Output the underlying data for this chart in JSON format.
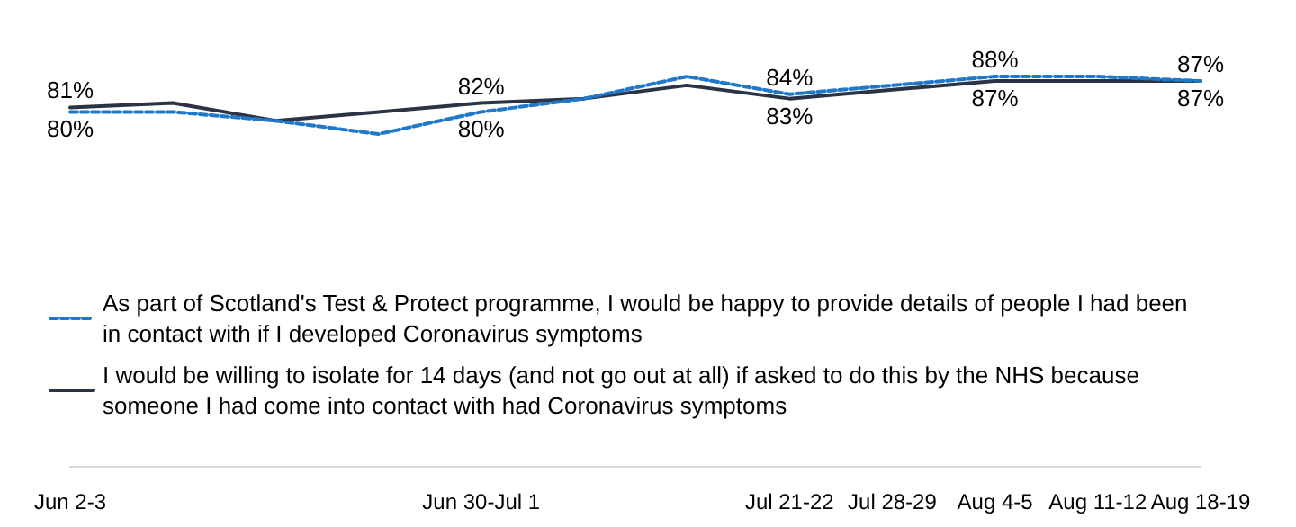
{
  "chart_data": {
    "type": "line",
    "categories": [
      "Jun 2-3",
      null,
      null,
      null,
      "Jun 30-Jul 1",
      null,
      null,
      "Jul 21-22",
      "Jul 28-29",
      "Aug 4-5",
      "Aug 11-12",
      "Aug 18-19"
    ],
    "series": [
      {
        "name": "As part of Scotland's Test & Protect programme, I would be happy to provide details of people I had been in contact with if I developed Coronavirus symptoms",
        "color": "#1f78c8",
        "line_style": "dashed",
        "values": [
          80,
          80,
          78,
          75,
          80,
          83,
          88,
          84,
          86,
          88,
          88,
          87
        ],
        "value_labels": [
          "80%",
          null,
          null,
          null,
          "80%",
          null,
          null,
          "84%",
          null,
          "88%",
          null,
          "87%"
        ]
      },
      {
        "name": "I would be willing to isolate for 14 days (and not go out at all) if asked to do this by the NHS because someone I had come into contact with had Coronavirus symptoms",
        "color": "#2b3444",
        "line_style": "solid",
        "values": [
          81,
          82,
          78,
          80,
          82,
          83,
          86,
          83,
          85,
          87,
          87,
          87
        ],
        "value_labels": [
          "81%",
          null,
          null,
          null,
          "82%",
          null,
          null,
          "83%",
          null,
          "87%",
          null,
          "87%"
        ]
      }
    ],
    "legend": "bottom left",
    "grid": false,
    "marker": "none",
    "tick_labels": "x"
  }
}
